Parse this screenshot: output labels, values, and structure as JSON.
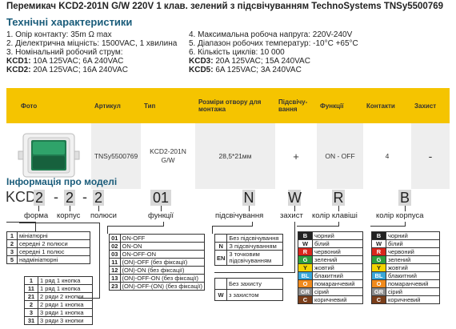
{
  "title": "Перемикач KCD2-201N G/W 220V 1 клав. зелений з підсвічуванням TechnoSystems TNSy5500769",
  "specs": {
    "heading": "Технічні характеристики",
    "left": [
      "1. Опір контакту: 35m Ω  max",
      "2. Діелектрична міцність: 1500VAC, 1 хвилина",
      "3. Номінальний робочий струм:"
    ],
    "kcd1_label": "KCD1:",
    "kcd1_value": " 10A 125VAC; 6A 240VAC",
    "kcd2_label": "KCD2:",
    "kcd2_value": " 20A 125VAC; 16A 240VAC",
    "right": [
      "4. Максимальна робоча напруга: 220V-240V",
      "5. Діапазон робочих температур: -10°C +65°C",
      "6. Кількість циклів: 10 000"
    ],
    "kcd3_label": "KCD3:",
    "kcd3_value": " 20A 125VAC; 15A 240VAC",
    "kcd5_label": "KCD5:",
    "kcd5_value": " 6A 125VAC; 3A 240VAC"
  },
  "table": {
    "headers": [
      "Фото",
      "Артикул",
      "Тип",
      "Розміри отвору для монтажа",
      "Підсвічу-вання",
      "Функції",
      "Контакти",
      "Захист"
    ],
    "row": [
      "",
      "TNSy5500769",
      "KCD2-201N G/W",
      "28,5*21мм",
      "+",
      "ON - OFF",
      "4",
      "-"
    ]
  },
  "model": {
    "heading": "Інформація про моделі",
    "prefix": "KCD",
    "boxes": [
      "2",
      "2",
      "2",
      "01",
      "N",
      "W",
      "R",
      "B"
    ],
    "dashes": [
      "-",
      "-"
    ],
    "labels": [
      "форма",
      "корпус",
      "полюси",
      "функції",
      "підсвічування",
      "захист",
      "колір клавіші",
      "колір корпуса"
    ],
    "shape": [
      [
        "1",
        "мініатюрні"
      ],
      [
        "2",
        "середні 2 полюси"
      ],
      [
        "3",
        "середні 1 полюс"
      ],
      [
        "5",
        "надмініатюрні"
      ]
    ],
    "poles": [
      [
        "1",
        "1 ряд 1 кнопка"
      ],
      [
        "11",
        "1 ряд 1 кнопка"
      ],
      [
        "21",
        "2 ряди 2 кнопки"
      ],
      [
        "2",
        "2 ряди 1 кнопка"
      ],
      [
        "3",
        "3 ряди 1 кнопка"
      ],
      [
        "31",
        "3 ряди 3 кнопки"
      ]
    ],
    "functions": [
      [
        "01",
        "ON-OFF"
      ],
      [
        "02",
        "ON-ON"
      ],
      [
        "03",
        "ON-OFF-ON"
      ],
      [
        "11",
        "(ON)-OFF (без фіксації)"
      ],
      [
        "12",
        "(ON)-ON (без фіксації)"
      ],
      [
        "13",
        "(ON)-OFF-ON (без фіксації)"
      ],
      [
        "23",
        "(ON)-OFF-(ON) (без фіксації)"
      ]
    ],
    "backlight": [
      [
        "",
        "Без підсвічування"
      ],
      [
        "N",
        "З підсвічуванням"
      ],
      [
        "EN",
        "3 точковим підсвічуванням"
      ]
    ],
    "protection": [
      [
        "",
        "Без захисту"
      ],
      [
        "W",
        "з захистом"
      ]
    ],
    "key_colors": [
      [
        "B",
        "чорний",
        "#222222"
      ],
      [
        "W",
        "білий",
        "#ffffff"
      ],
      [
        "R",
        "червоний",
        "#d9261c"
      ],
      [
        "G",
        "зелений",
        "#2e9e3e"
      ],
      [
        "Y",
        "жовтий",
        "#f2d400"
      ],
      [
        "BL",
        "блакитний",
        "#3aa7d8"
      ],
      [
        "O",
        "помаранчевий",
        "#f08a1c"
      ],
      [
        "GR",
        "сірий",
        "#8c8c8c"
      ],
      [
        "C",
        "коричневий",
        "#7a3e1a"
      ]
    ],
    "body_colors": [
      [
        "B",
        "чорний",
        "#222222"
      ],
      [
        "W",
        "білий",
        "#ffffff"
      ],
      [
        "R",
        "червоний",
        "#d9261c"
      ],
      [
        "G",
        "зелений",
        "#2e9e3e"
      ],
      [
        "Y",
        "жовтий",
        "#f2d400"
      ],
      [
        "BL",
        "блакитний",
        "#3aa7d8"
      ],
      [
        "O",
        "помаранчевий",
        "#f08a1c"
      ],
      [
        "GR",
        "сірий",
        "#8c8c8c"
      ],
      [
        "C",
        "коричневий",
        "#7a3e1a"
      ]
    ]
  }
}
